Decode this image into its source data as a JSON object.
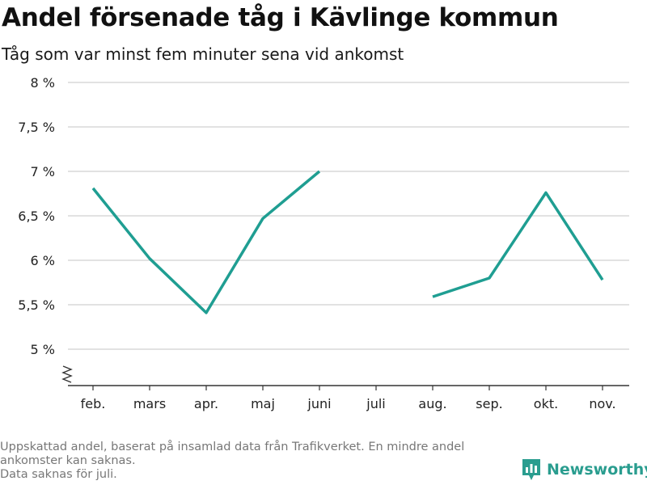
{
  "title": "Andel försenade tåg i Kävlinge kommun",
  "subtitle": "Tåg som var minst fem minuter sena vid ankomst",
  "footnote": {
    "line1": "Uppskattad andel, baserat på insamlad data från Trafikverket. En mindre andel",
    "line2": "ankomster kan saknas.",
    "line3": "Data saknas för juli."
  },
  "brand": {
    "name": "Newsworthy",
    "icon": "newsworthy-logo-icon",
    "color": "#2a9d8f"
  },
  "colors": {
    "line": "#1f9e92",
    "grid": "#d9d9d9",
    "axis": "#333333",
    "tick_text": "#222222"
  },
  "chart_data": {
    "type": "line",
    "categories": [
      "feb.",
      "mars",
      "apr.",
      "maj",
      "juni",
      "juli",
      "aug.",
      "sep.",
      "okt.",
      "nov."
    ],
    "series": [
      {
        "values": [
          6.81,
          6.02,
          5.41,
          6.47,
          7.0,
          null,
          5.59,
          5.8,
          6.76,
          5.78
        ]
      }
    ],
    "yticks": [
      5,
      5.5,
      6,
      6.5,
      7,
      7.5,
      8
    ],
    "ytick_labels": [
      "5 %",
      "5,5 %",
      "6 %",
      "6,5 %",
      "7 %",
      "7,5 %",
      "8 %"
    ],
    "ylim": [
      4.6,
      8
    ],
    "y_axis_break": true,
    "grid": true
  }
}
